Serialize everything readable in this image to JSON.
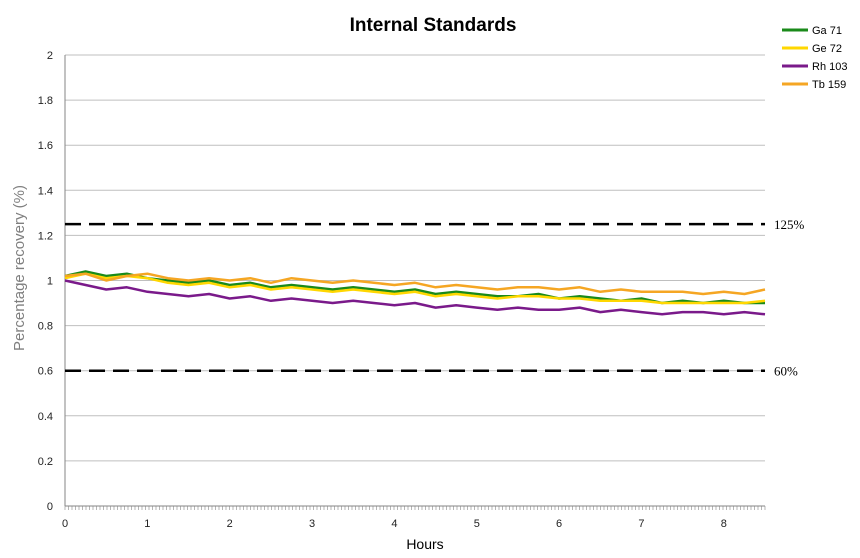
{
  "chart_data": {
    "type": "line",
    "title": "Internal Standards",
    "xlabel": "Hours",
    "ylabel": "Percentage recovery (%)",
    "xlim": [
      0,
      8.5
    ],
    "ylim": [
      0,
      2
    ],
    "x_ticks": [
      0,
      1,
      2,
      3,
      4,
      5,
      6,
      7,
      8
    ],
    "x_tick_labels": [
      "0",
      "1",
      "2",
      "3",
      "4",
      "5",
      "6",
      "7",
      "8"
    ],
    "y_ticks": [
      0,
      0.2,
      0.4,
      0.6,
      0.8,
      1,
      1.2,
      1.4,
      1.6,
      1.8,
      2
    ],
    "y_tick_labels": [
      "0",
      "0.2",
      "0.4",
      "0.6",
      "0.8",
      "1",
      "1.2",
      "1.4",
      "1.6",
      "1.8",
      "2"
    ],
    "grid": true,
    "legend_position": "top-right",
    "x": [
      0.0,
      0.25,
      0.5,
      0.75,
      1.0,
      1.25,
      1.5,
      1.75,
      2.0,
      2.25,
      2.5,
      2.75,
      3.0,
      3.25,
      3.5,
      3.75,
      4.0,
      4.25,
      4.5,
      4.75,
      5.0,
      5.25,
      5.5,
      5.75,
      6.0,
      6.25,
      6.5,
      6.75,
      7.0,
      7.25,
      7.5,
      7.75,
      8.0,
      8.25,
      8.5
    ],
    "series": [
      {
        "name": "Ga 71",
        "color": "#1a8a1a",
        "values": [
          1.02,
          1.04,
          1.02,
          1.03,
          1.01,
          1.0,
          0.99,
          1.0,
          0.98,
          0.99,
          0.97,
          0.98,
          0.97,
          0.96,
          0.97,
          0.96,
          0.95,
          0.96,
          0.94,
          0.95,
          0.94,
          0.93,
          0.93,
          0.94,
          0.92,
          0.93,
          0.92,
          0.91,
          0.92,
          0.9,
          0.91,
          0.9,
          0.91,
          0.9,
          0.9
        ]
      },
      {
        "name": "Ge 72",
        "color": "#ffd700",
        "values": [
          1.01,
          1.03,
          1.01,
          1.02,
          1.01,
          0.99,
          0.98,
          0.99,
          0.97,
          0.98,
          0.96,
          0.97,
          0.96,
          0.95,
          0.96,
          0.95,
          0.94,
          0.95,
          0.93,
          0.94,
          0.93,
          0.92,
          0.93,
          0.93,
          0.92,
          0.92,
          0.91,
          0.91,
          0.91,
          0.9,
          0.9,
          0.9,
          0.9,
          0.9,
          0.91
        ]
      },
      {
        "name": "Rh 103",
        "color": "#7a1a8a",
        "values": [
          1.0,
          0.98,
          0.96,
          0.97,
          0.95,
          0.94,
          0.93,
          0.94,
          0.92,
          0.93,
          0.91,
          0.92,
          0.91,
          0.9,
          0.91,
          0.9,
          0.89,
          0.9,
          0.88,
          0.89,
          0.88,
          0.87,
          0.88,
          0.87,
          0.87,
          0.88,
          0.86,
          0.87,
          0.86,
          0.85,
          0.86,
          0.86,
          0.85,
          0.86,
          0.85
        ]
      },
      {
        "name": "Tb 159",
        "color": "#f5a623",
        "values": [
          1.02,
          1.03,
          1.0,
          1.02,
          1.03,
          1.01,
          1.0,
          1.01,
          1.0,
          1.01,
          0.99,
          1.01,
          1.0,
          0.99,
          1.0,
          0.99,
          0.98,
          0.99,
          0.97,
          0.98,
          0.97,
          0.96,
          0.97,
          0.97,
          0.96,
          0.97,
          0.95,
          0.96,
          0.95,
          0.95,
          0.95,
          0.94,
          0.95,
          0.94,
          0.96
        ]
      }
    ],
    "reference_lines": [
      {
        "y": 1.25,
        "label": "125%"
      },
      {
        "y": 0.6,
        "label": "60%"
      }
    ]
  }
}
